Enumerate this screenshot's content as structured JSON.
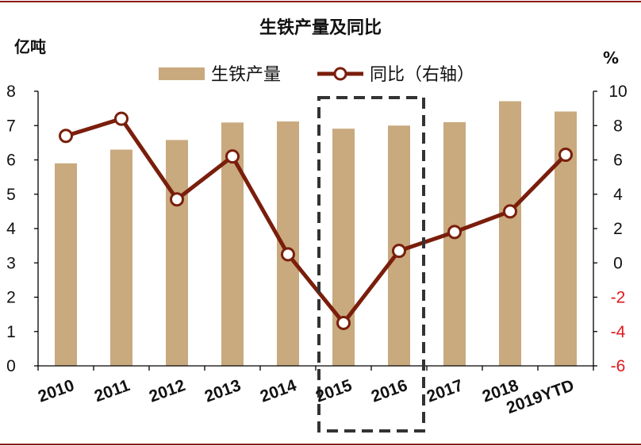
{
  "chart_data": {
    "type": "bar+line",
    "title": "生铁产量及同比",
    "y_left_unit": "亿吨",
    "y_right_unit": "%",
    "categories": [
      "2010",
      "2011",
      "2012",
      "2013",
      "2014",
      "2015",
      "2016",
      "2017",
      "2018",
      "2019YTD"
    ],
    "series": [
      {
        "name": "生铁产量",
        "kind": "bar",
        "axis": "left",
        "color": "#c9a97e",
        "values": [
          5.9,
          6.3,
          6.58,
          7.09,
          7.12,
          6.91,
          7.0,
          7.1,
          7.71,
          7.41
        ]
      },
      {
        "name": "同比（右轴）",
        "kind": "line",
        "axis": "right",
        "color": "#7a1e0c",
        "values": [
          7.4,
          8.4,
          3.7,
          6.2,
          0.5,
          -3.5,
          0.7,
          1.8,
          3.0,
          6.3
        ]
      }
    ],
    "y_left": {
      "min": 0,
      "max": 8,
      "ticks": [
        "0",
        "1",
        "2",
        "3",
        "4",
        "5",
        "6",
        "7",
        "8"
      ]
    },
    "y_right": {
      "min": -6,
      "max": 10,
      "ticks": [
        "-6",
        "-4",
        "-2",
        "0",
        "2",
        "4",
        "6",
        "8",
        "10"
      ],
      "negative_color": "#e0191b",
      "positive_color": "#111111"
    },
    "highlight": {
      "from": "2015",
      "to": "2016",
      "style": "dashed-box"
    },
    "grid": false,
    "legend": "top-center"
  }
}
